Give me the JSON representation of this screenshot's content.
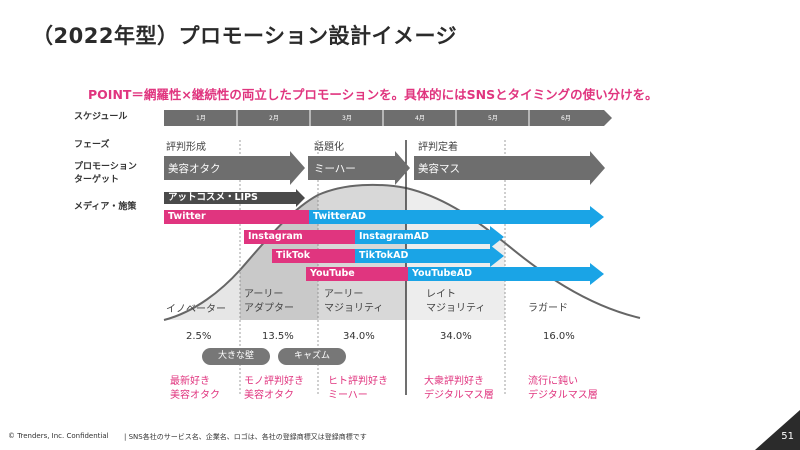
{
  "title": "（2022年型）プロモーション設計イメージ",
  "point": "POINT＝網羅性×継続性の両立したプロモーションを。具体的にはSNSとタイミングの使い分けを。",
  "row_labels": {
    "schedule": "スケジュール",
    "phase": "フェーズ",
    "target_line1": "プロモーション",
    "target_line2": "ターゲット",
    "media": "メディア・施策"
  },
  "months": [
    "1月",
    "2月",
    "3月",
    "4月",
    "5月",
    "6月"
  ],
  "phases": [
    "評判形成",
    "話題化",
    "評判定着"
  ],
  "targets": [
    "美容オタク",
    "ミーハー",
    "美容マス"
  ],
  "media": {
    "atcosme": "アットコスメ・LIPS",
    "twitter": "Twitter",
    "twitter_ad": "TwitterAD",
    "instagram": "Instagram",
    "instagram_ad": "InstagramAD",
    "tiktok": "TikTok",
    "tiktok_ad": "TikTokAD",
    "youtube": "YouTube",
    "youtube_ad": "YouTubeAD"
  },
  "segments": [
    {
      "name": "イノベーター",
      "pct": "2.5%",
      "desc1": "最新好き",
      "desc2": "美容オタク"
    },
    {
      "name1": "アーリー",
      "name2": "アダプター",
      "pct": "13.5%",
      "desc1": "モノ評判好き",
      "desc2": "美容オタク"
    },
    {
      "name1": "アーリー",
      "name2": "マジョリティ",
      "pct": "34.0%",
      "desc1": "ヒト評判好き",
      "desc2": "ミーハー"
    },
    {
      "name1": "レイト",
      "name2": "マジョリティ",
      "pct": "34.0%",
      "desc1": "大衆評判好き",
      "desc2": "デジタルマス層"
    },
    {
      "name": "ラガード",
      "pct": "16.0%",
      "desc1": "流行に鈍い",
      "desc2": "デジタルマス層"
    }
  ],
  "pills": [
    "大きな壁",
    "キャズム"
  ],
  "footer": {
    "copyright": "© Trenders, Inc.  Confidential",
    "note": "| SNS各社のサービス名、企業名、ロゴは、各社の登録商標又は登録商標です",
    "page": "51"
  },
  "colors": {
    "pink": "#e0357f",
    "blue": "#1aa4e6",
    "gray": "#777777",
    "dark": "#2b2b2b"
  }
}
